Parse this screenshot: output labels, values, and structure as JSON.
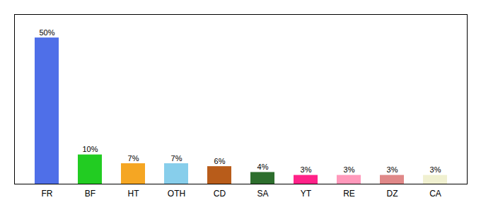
{
  "chart_data": {
    "type": "bar",
    "categories": [
      "FR",
      "BF",
      "HT",
      "OTH",
      "CD",
      "SA",
      "YT",
      "RE",
      "DZ",
      "CA"
    ],
    "values": [
      50,
      10,
      7,
      7,
      6,
      4,
      3,
      3,
      3,
      3
    ],
    "colors": [
      "#4f6fe8",
      "#22cc22",
      "#f5a623",
      "#87ceeb",
      "#b85c1a",
      "#2d6e2d",
      "#ff2288",
      "#ff99bb",
      "#e08888",
      "#f0f0d0"
    ],
    "ylim": [
      0,
      58
    ],
    "data_labels": true,
    "value_labels": [
      "50%",
      "10%",
      "7%",
      "7%",
      "6%",
      "4%",
      "3%",
      "3%",
      "3%",
      "3%"
    ],
    "tick_labels": "x",
    "grid": false
  }
}
